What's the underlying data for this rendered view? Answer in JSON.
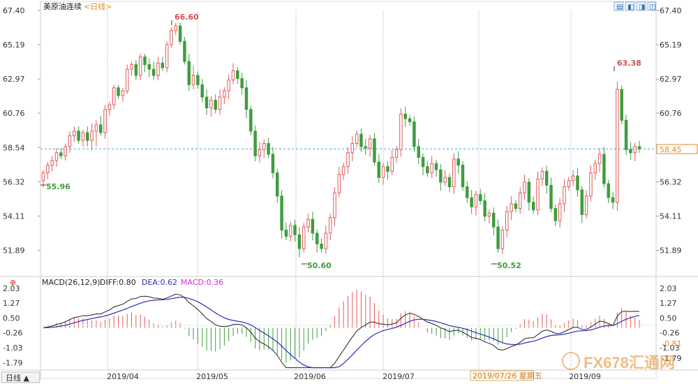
{
  "header": {
    "instrument": "美原油连续",
    "period_bracket": "<日线>"
  },
  "toolbar": [
    "▤",
    "◧",
    "◨",
    "◫"
  ],
  "price_axis_ticks": [
    "67.40",
    "65.19",
    "62.97",
    "60.76",
    "58.54",
    "56.32",
    "54.11",
    "51.89"
  ],
  "macd_axis_ticks": [
    "2.03",
    "1.27",
    "0.50",
    "-0.26",
    "-1.03",
    "-1.79"
  ],
  "macd_legend": {
    "name": "MACD(26,12,9)",
    "diff": "DIFF:0.80",
    "dea": "DEA:0.62",
    "macd": "MACD:0.36"
  },
  "current_price": "58.45",
  "macd_current_right": "-0.81",
  "macd_bottom_right": "-1.79",
  "crosshair_date": "2019/07/26 星期五",
  "period_button": "日线 ▲",
  "watermark": "FX678汇通网",
  "x_labels": [
    "2019/04",
    "2019/05",
    "2019/06",
    "2019/07",
    "2019/09"
  ],
  "annotations": [
    {
      "label": "55.96",
      "index": 0,
      "kind": "low"
    },
    {
      "label": "66.60",
      "index": 24,
      "kind": "high"
    },
    {
      "label": "50.60",
      "index": 52,
      "kind": "low"
    },
    {
      "label": "50.52",
      "index": 93,
      "kind": "low"
    },
    {
      "label": "63.38",
      "index": 118,
      "kind": "high"
    }
  ],
  "colors": {
    "up": "#e05a5a",
    "down": "#3f9d3f",
    "diff": "#222222",
    "dea": "#2c2cb8",
    "macd_up": "#e05a5a",
    "macd_down": "#3f9d3f"
  },
  "chart_data": [
    {
      "type": "candlestick",
      "title": "美原油连续",
      "ylim": [
        50.2,
        67.4
      ],
      "reference_line": 58.45,
      "candles": [
        [
          56.4,
          57.1,
          55.96,
          56.9
        ],
        [
          56.9,
          57.6,
          56.5,
          57.4
        ],
        [
          57.4,
          58.0,
          57.0,
          57.7
        ],
        [
          57.7,
          58.5,
          57.3,
          58.2
        ],
        [
          58.2,
          58.5,
          57.8,
          58.0
        ],
        [
          58.0,
          58.8,
          57.7,
          58.6
        ],
        [
          58.6,
          59.6,
          58.2,
          59.3
        ],
        [
          59.3,
          59.9,
          58.9,
          59.6
        ],
        [
          59.6,
          59.9,
          58.8,
          59.0
        ],
        [
          59.0,
          59.7,
          58.6,
          59.5
        ],
        [
          59.5,
          59.9,
          58.6,
          59.0
        ],
        [
          59.0,
          60.1,
          58.4,
          59.6
        ],
        [
          59.6,
          60.3,
          58.6,
          60.0
        ],
        [
          60.0,
          60.6,
          59.3,
          59.5
        ],
        [
          59.5,
          61.3,
          59.1,
          61.0
        ],
        [
          61.0,
          61.5,
          60.6,
          61.3
        ],
        [
          61.3,
          62.6,
          61.0,
          62.4
        ],
        [
          62.4,
          62.6,
          61.7,
          61.9
        ],
        [
          61.9,
          62.4,
          61.5,
          62.2
        ],
        [
          62.2,
          63.9,
          62.0,
          63.6
        ],
        [
          63.6,
          64.1,
          63.2,
          63.9
        ],
        [
          63.9,
          64.2,
          62.9,
          63.2
        ],
        [
          63.2,
          64.6,
          62.9,
          64.4
        ],
        [
          64.4,
          64.6,
          63.4,
          63.9
        ],
        [
          63.9,
          64.3,
          63.1,
          63.6
        ],
        [
          63.6,
          64.1,
          62.9,
          63.2
        ],
        [
          63.2,
          64.4,
          62.9,
          64.0
        ],
        [
          64.0,
          64.4,
          63.5,
          63.7
        ],
        [
          63.7,
          65.4,
          63.4,
          65.2
        ],
        [
          65.2,
          66.3,
          65.0,
          66.1
        ],
        [
          66.1,
          66.6,
          65.8,
          66.4
        ],
        [
          66.4,
          66.6,
          65.2,
          65.4
        ],
        [
          65.4,
          65.7,
          63.9,
          64.1
        ],
        [
          64.1,
          64.6,
          62.2,
          62.6
        ],
        [
          62.6,
          63.8,
          62.3,
          63.2
        ]
      ]
    },
    {
      "type": "line",
      "title": "MACD(26,12,9)",
      "ylim": [
        -2.1,
        2.1
      ],
      "series": [
        {
          "name": "DIFF",
          "last": 0.8
        },
        {
          "name": "DEA",
          "last": 0.62
        },
        {
          "name": "MACD",
          "last": 0.36
        }
      ]
    }
  ]
}
